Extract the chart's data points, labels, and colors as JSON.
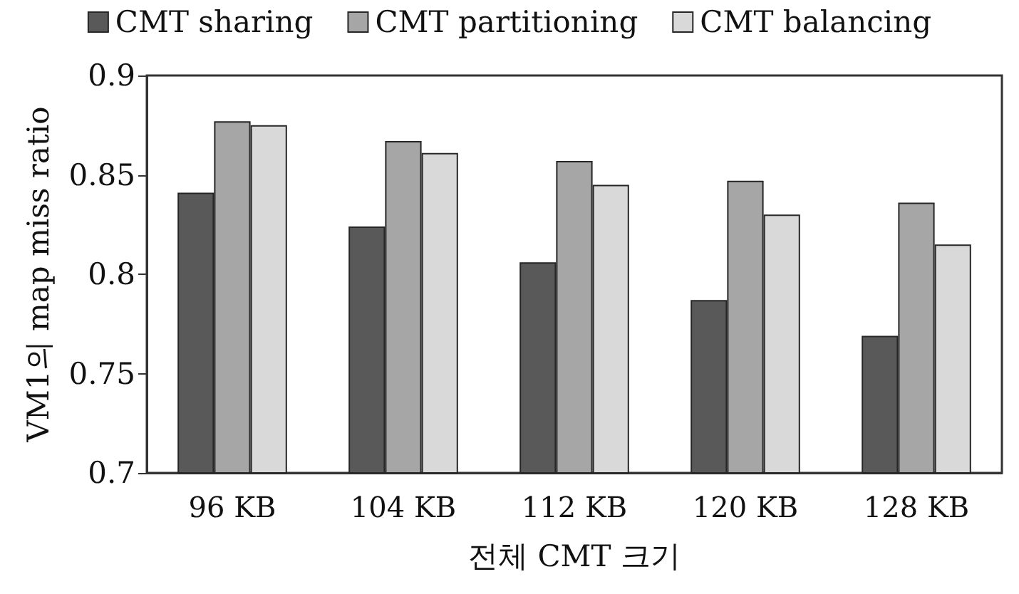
{
  "chart_data": {
    "type": "bar",
    "xlabel": "전체 CMT 크기",
    "ylabel": "VM1의 map miss ratio",
    "categories": [
      "96 KB",
      "104 KB",
      "112 KB",
      "120 KB",
      "128 KB"
    ],
    "series": [
      {
        "name": "CMT sharing",
        "color": "#595959",
        "values": [
          0.841,
          0.824,
          0.806,
          0.787,
          0.769
        ]
      },
      {
        "name": "CMT partitioning",
        "color": "#a6a6a6",
        "values": [
          0.877,
          0.867,
          0.857,
          0.847,
          0.836
        ]
      },
      {
        "name": "CMT balancing",
        "color": "#d9d9d9",
        "values": [
          0.875,
          0.861,
          0.845,
          0.83,
          0.815
        ]
      }
    ],
    "ylim": [
      0.7,
      0.9
    ],
    "yticks": [
      0.7,
      0.75,
      0.8,
      0.85,
      0.9
    ],
    "grid": false,
    "legend": "top"
  }
}
